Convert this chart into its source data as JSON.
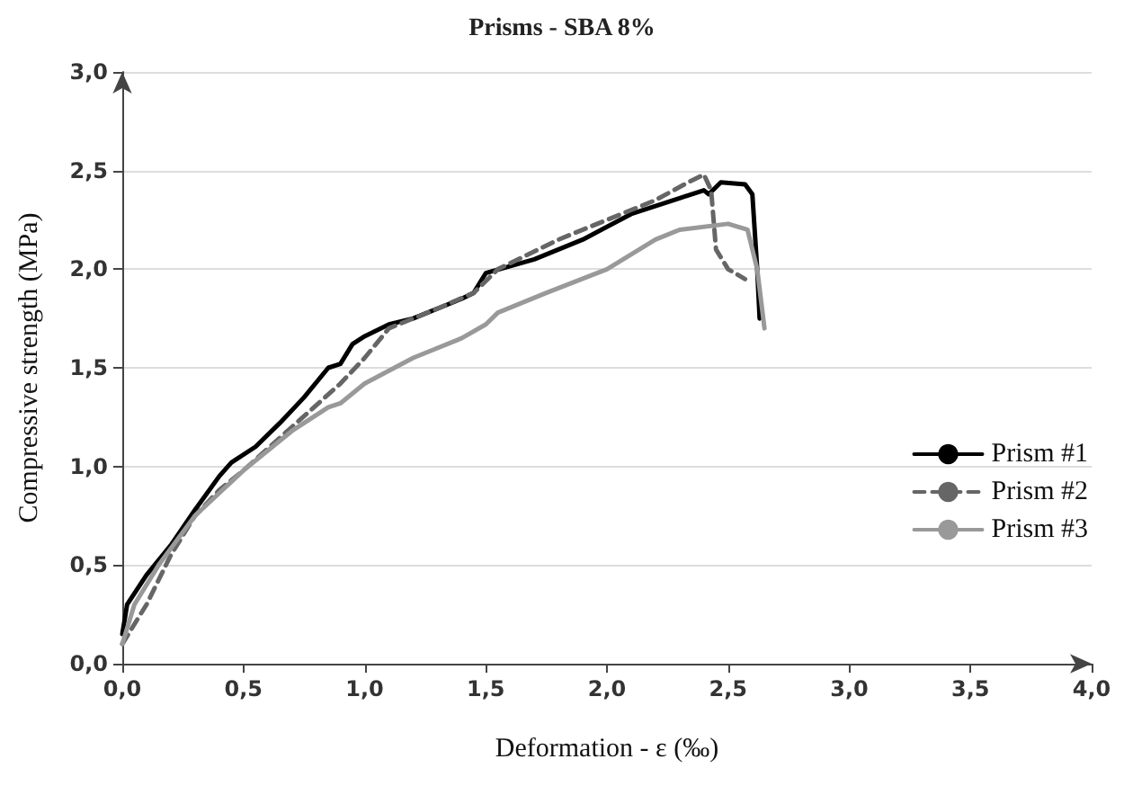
{
  "chart_data": {
    "type": "line",
    "title": "Prisms - SBA 8%",
    "xlabel": "Deformation - ε (‰)",
    "ylabel": "Compressive strength (MPa)",
    "xlim": [
      0,
      4
    ],
    "ylim": [
      0,
      3
    ],
    "xticks": [
      {
        "value": 0,
        "label": "0,0"
      },
      {
        "value": 0.5,
        "label": "0,5"
      },
      {
        "value": 1,
        "label": "1,0"
      },
      {
        "value": 1.5,
        "label": "1,5"
      },
      {
        "value": 2,
        "label": "2,0"
      },
      {
        "value": 2.5,
        "label": "2,5"
      },
      {
        "value": 3,
        "label": "3,0"
      },
      {
        "value": 3.5,
        "label": "3,5"
      },
      {
        "value": 4,
        "label": "4,0"
      }
    ],
    "yticks": [
      {
        "value": 0,
        "label": "0,0"
      },
      {
        "value": 0.5,
        "label": "0,5"
      },
      {
        "value": 1,
        "label": "1,0"
      },
      {
        "value": 1.5,
        "label": "1,5"
      },
      {
        "value": 2,
        "label": "2,0"
      },
      {
        "value": 2.5,
        "label": "2,5"
      },
      {
        "value": 3,
        "label": "3,0"
      }
    ],
    "grid": "y",
    "legend": "right",
    "marker": "none",
    "series": [
      {
        "name": "Prism #1",
        "color": "#000000",
        "line_style": "solid",
        "x": [
          0,
          0.02,
          0.1,
          0.2,
          0.3,
          0.4,
          0.45,
          0.55,
          0.65,
          0.75,
          0.85,
          0.9,
          0.95,
          1.0,
          1.1,
          1.2,
          1.3,
          1.4,
          1.45,
          1.5,
          1.7,
          1.9,
          2.1,
          2.3,
          2.4,
          2.42,
          2.47,
          2.57,
          2.6,
          2.62,
          2.63
        ],
        "values": [
          0.15,
          0.3,
          0.45,
          0.6,
          0.78,
          0.95,
          1.02,
          1.1,
          1.22,
          1.35,
          1.5,
          1.52,
          1.62,
          1.66,
          1.72,
          1.75,
          1.8,
          1.85,
          1.88,
          1.98,
          2.05,
          2.15,
          2.28,
          2.36,
          2.4,
          2.38,
          2.44,
          2.43,
          2.38,
          2.0,
          1.75
        ]
      },
      {
        "name": "Prism #2",
        "color": "#666666",
        "line_style": "dashed",
        "x": [
          0,
          0.1,
          0.2,
          0.3,
          0.4,
          0.5,
          0.7,
          0.9,
          1.0,
          1.1,
          1.3,
          1.45,
          1.55,
          1.8,
          2.0,
          2.2,
          2.35,
          2.4,
          2.43,
          2.45,
          2.5,
          2.57
        ],
        "values": [
          0.1,
          0.3,
          0.55,
          0.75,
          0.88,
          0.98,
          1.2,
          1.42,
          1.55,
          1.7,
          1.8,
          1.88,
          2.0,
          2.15,
          2.25,
          2.35,
          2.45,
          2.48,
          2.4,
          2.1,
          2.0,
          1.95
        ]
      },
      {
        "name": "Prism #3",
        "color": "#999999",
        "line_style": "solid",
        "x": [
          0,
          0.05,
          0.15,
          0.3,
          0.5,
          0.7,
          0.85,
          0.9,
          1.0,
          1.2,
          1.4,
          1.5,
          1.55,
          1.75,
          2.0,
          2.2,
          2.3,
          2.5,
          2.58,
          2.62,
          2.65
        ],
        "values": [
          0.1,
          0.3,
          0.5,
          0.75,
          0.98,
          1.18,
          1.3,
          1.32,
          1.42,
          1.55,
          1.65,
          1.72,
          1.78,
          1.88,
          2.0,
          2.15,
          2.2,
          2.23,
          2.2,
          2.0,
          1.7
        ]
      }
    ]
  }
}
